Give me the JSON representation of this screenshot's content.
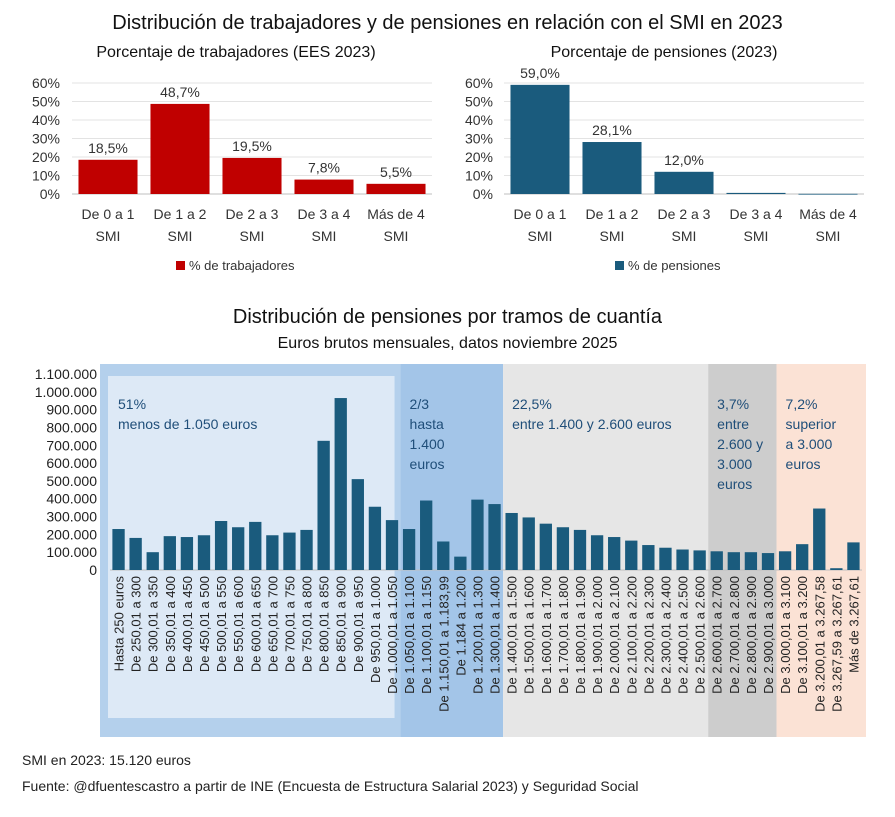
{
  "header": {
    "title": "Distribución de trabajadores y de pensiones en relación con el SMI en 2023",
    "bottom_title": "Distribución de pensiones por tramos de cuantía",
    "bottom_subtitle": "Euros brutos mensuales, datos noviembre 2025"
  },
  "notes": {
    "smi": "SMI en 2023: 15.120 euros",
    "source": "Fuente: @dfuentescastro a partir de INE (Encuesta de Estructura Salarial 2023) y Seguridad Social"
  },
  "chart_data": [
    {
      "type": "bar",
      "title": "Porcentaje de trabajadores (EES 2023)",
      "categories": [
        [
          "De 0 a 1",
          "SMI"
        ],
        [
          "De 1 a 2",
          "SMI"
        ],
        [
          "De 2 a 3",
          "SMI"
        ],
        [
          "De 3 a 4",
          "SMI"
        ],
        [
          "Más de 4",
          "SMI"
        ]
      ],
      "series": [
        {
          "name": "% de trabajadores",
          "values": [
            18.5,
            48.7,
            19.5,
            7.8,
            5.5
          ]
        }
      ],
      "data_labels": [
        "18,5%",
        "48,7%",
        "19,5%",
        "7,8%",
        "5,5%"
      ],
      "yticks": [
        "0%",
        "10%",
        "20%",
        "30%",
        "40%",
        "50%",
        "60%"
      ],
      "ylim": [
        0,
        60
      ],
      "color": "#c00000",
      "legend": "bottom"
    },
    {
      "type": "bar",
      "title": "Porcentaje de pensiones (2023)",
      "categories": [
        [
          "De 0 a 1",
          "SMI"
        ],
        [
          "De 1 a 2",
          "SMI"
        ],
        [
          "De 2 a 3",
          "SMI"
        ],
        [
          "De 3 a 4",
          "SMI"
        ],
        [
          "Más de 4",
          "SMI"
        ]
      ],
      "series": [
        {
          "name": "% de pensiones",
          "values": [
            59.0,
            28.1,
            12.0,
            0.6,
            0.1
          ]
        }
      ],
      "data_labels": [
        "59,0%",
        "28,1%",
        "12,0%",
        "",
        ""
      ],
      "yticks": [
        "0%",
        "10%",
        "20%",
        "30%",
        "40%",
        "50%",
        "60%"
      ],
      "ylim": [
        0,
        60
      ],
      "color": "#1a5b7d",
      "legend": "bottom"
    },
    {
      "type": "bar",
      "title": "Distribución de pensiones por tramos de cuantía",
      "ylim": [
        0,
        1100000
      ],
      "yticks": [
        "0",
        "100.000",
        "200.000",
        "300.000",
        "400.000",
        "500.000",
        "600.000",
        "700.000",
        "800.000",
        "900.000",
        "1.000.000",
        "1.100.000"
      ],
      "categories": [
        "Hasta 250 euros",
        "De 250,01 a 300",
        "De 300,01 a 350",
        "De 350,01 a 400",
        "De 400,01 a 450",
        "De 450,01 a 500",
        "De 500,01 a 550",
        "De 550,01 a 600",
        "De 600,01 a 650",
        "De 650,01 a 700",
        "De 700,01 a 750",
        "De 750,01 a 800",
        "De 800,01 a 850",
        "De 850,01 a 900",
        "De 900,01 a 950",
        "De 950,01 a 1.000",
        "De 1.000,01 a 1.050",
        "De 1.050,01 a 1.100",
        "De 1.100,01 a 1.150",
        "De 1.150,01 a 1.183,99",
        "De 1.184 a 1.200",
        "De 1.200,01 a 1.300",
        "De 1.300,01 a 1.400",
        "De 1.400,01 a 1.500",
        "De 1.500,01 a 1.600",
        "De 1.600,01 a 1.700",
        "De 1.700,01 a 1.800",
        "De 1.800,01 a 1.900",
        "De 1.900,01 a 2.000",
        "De 2.000,01 a 2.100",
        "De 2.100,01 a 2.200",
        "De 2.200,01 a 2.300",
        "De 2.300,01 a 2.400",
        "De 2.400,01 a 2.500",
        "De 2.500,01 a 2.600",
        "De 2.600,01 a 2.700",
        "De 2.700,01 a 2.800",
        "De 2.800,01 a 2.900",
        "De 2.900,01 a 3.000",
        "De 3.000,01 a 3.100",
        "De 3.100,01 a 3.200",
        "De 3.200,01 a 3.267,58",
        "De 3.267,59 a 3.267,61",
        "Más de 3.267,61"
      ],
      "values": [
        230000,
        180000,
        100000,
        190000,
        185000,
        195000,
        275000,
        240000,
        270000,
        195000,
        210000,
        225000,
        725000,
        965000,
        510000,
        355000,
        280000,
        230000,
        390000,
        160000,
        75000,
        395000,
        370000,
        320000,
        295000,
        260000,
        240000,
        225000,
        195000,
        185000,
        165000,
        140000,
        125000,
        115000,
        110000,
        105000,
        100000,
        100000,
        95000,
        105000,
        145000,
        345000,
        10000,
        155000
      ],
      "color": "#1a5b7d",
      "bands": [
        {
          "name": "menos-1050",
          "from": 0,
          "to": 16,
          "color": "#b4d0ec",
          "inner": "#dde9f6",
          "lines": [
            "51%",
            "menos de 1.050 euros"
          ]
        },
        {
          "name": "hasta-1400",
          "from": 17,
          "to": 22,
          "color": "#a3c5e8",
          "lines": [
            "2/3",
            "hasta",
            "1.400",
            "euros"
          ]
        },
        {
          "name": "1400-2600",
          "from": 23,
          "to": 34,
          "color": "#e6e6e6",
          "lines": [
            "22,5%",
            "entre 1.400 y 2.600 euros"
          ]
        },
        {
          "name": "2600-3000",
          "from": 35,
          "to": 38,
          "color": "#cdcdcd",
          "lines": [
            "3,7%",
            "entre",
            "2.600 y",
            "3.000",
            "euros"
          ]
        },
        {
          "name": "superior-3000",
          "from": 39,
          "to": 43,
          "color": "#fbe2d5",
          "lines": [
            "7,2%",
            "superior",
            "a 3.000",
            "euros"
          ]
        }
      ],
      "band_text_color": "#1f4e79"
    }
  ]
}
